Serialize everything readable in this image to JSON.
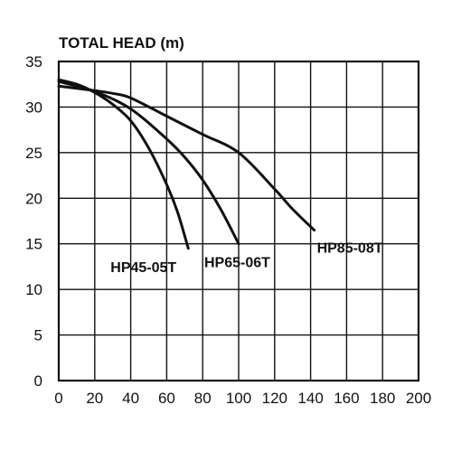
{
  "chart_data": {
    "type": "line",
    "title": "TOTAL HEAD (m)",
    "xlabel": "",
    "ylabel": "",
    "xlim": [
      0,
      200
    ],
    "ylim": [
      0,
      35
    ],
    "x_ticks": [
      0,
      20,
      40,
      60,
      80,
      100,
      120,
      140,
      160,
      180,
      200
    ],
    "y_ticks": [
      0,
      5,
      10,
      15,
      20,
      25,
      30,
      35
    ],
    "grid": true,
    "series": [
      {
        "name": "HP45-05T",
        "points": [
          [
            0,
            33.0
          ],
          [
            10,
            32.5
          ],
          [
            20,
            31.6
          ],
          [
            30,
            30.3
          ],
          [
            40,
            28.5
          ],
          [
            50,
            25.5
          ],
          [
            60,
            21.5
          ],
          [
            66,
            18.5
          ],
          [
            72,
            14.5
          ]
        ]
      },
      {
        "name": "HP65-06T",
        "points": [
          [
            0,
            32.8
          ],
          [
            20,
            31.7
          ],
          [
            40,
            29.8
          ],
          [
            60,
            26.5
          ],
          [
            70,
            24.5
          ],
          [
            80,
            22.0
          ],
          [
            90,
            18.8
          ],
          [
            100,
            15.0
          ]
        ]
      },
      {
        "name": "HP85-08T",
        "points": [
          [
            0,
            32.3
          ],
          [
            20,
            31.8
          ],
          [
            30,
            31.5
          ],
          [
            40,
            31.0
          ],
          [
            60,
            29.0
          ],
          [
            80,
            27.0
          ],
          [
            100,
            25.0
          ],
          [
            120,
            21.0
          ],
          [
            130,
            18.8
          ],
          [
            142,
            16.5
          ]
        ]
      }
    ]
  }
}
